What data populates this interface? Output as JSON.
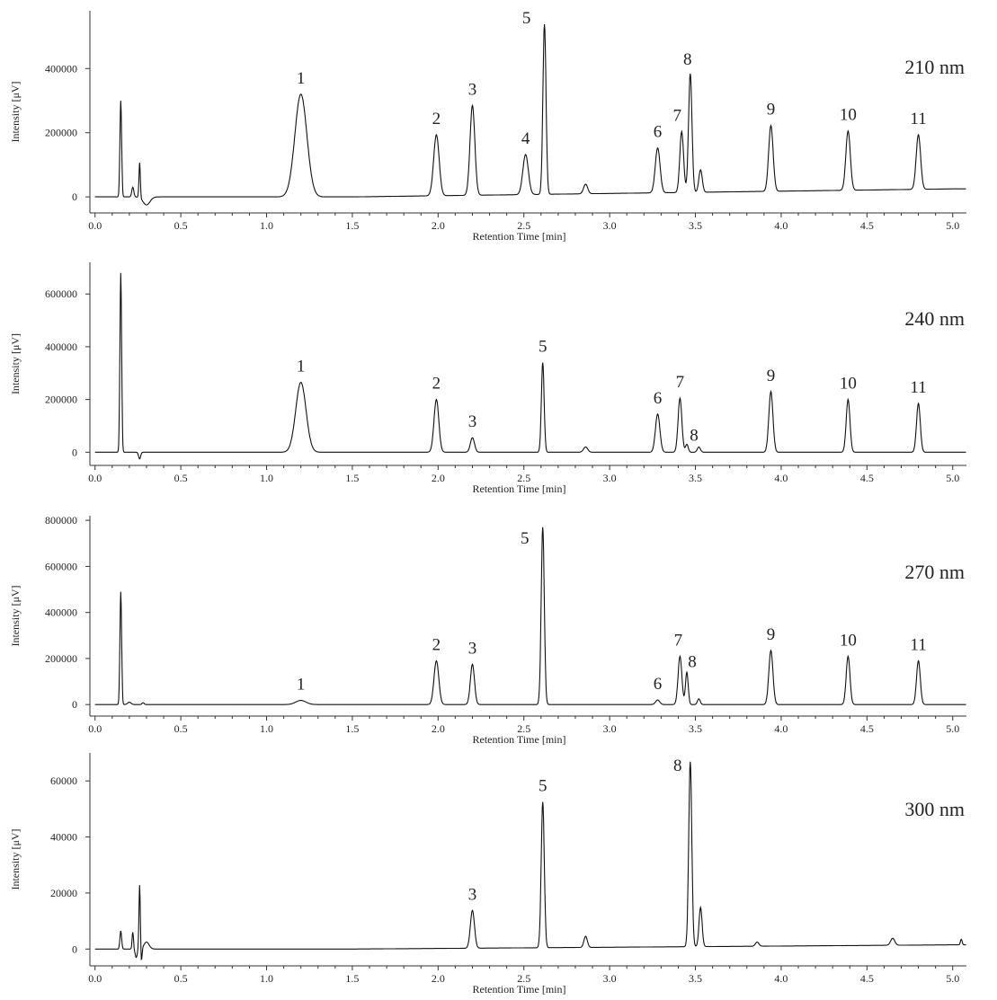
{
  "chart_data": [
    {
      "type": "line",
      "annotation": "210 nm",
      "xlabel": "Retention Time [min]",
      "ylabel": "Intensity [μV]",
      "xlim": [
        -0.03,
        5.08
      ],
      "ylim": [
        -50000,
        580000
      ],
      "yticks": [
        0,
        200000,
        400000
      ],
      "xticks": [
        "0.0",
        "0.5",
        "1.0",
        "1.5",
        "2.0",
        "2.5",
        "3.0",
        "3.5",
        "4.0",
        "4.5",
        "5.0"
      ],
      "baseline_drift": 25000,
      "peaks": [
        {
          "label": "",
          "x": 0.15,
          "h": 300000,
          "w": 0.005
        },
        {
          "label": "",
          "x": 0.22,
          "h": 30000,
          "w": 0.006
        },
        {
          "label": "",
          "x": 0.26,
          "h": 110000,
          "w": 0.004
        },
        {
          "label": "",
          "x": 0.3,
          "h": -25000,
          "w": 0.02
        },
        {
          "label": "1",
          "x": 1.2,
          "h": 320000,
          "w": 0.035
        },
        {
          "label": "2",
          "x": 1.99,
          "h": 190000,
          "w": 0.016
        },
        {
          "label": "3",
          "x": 2.2,
          "h": 280000,
          "w": 0.014
        },
        {
          "label": "4",
          "x": 2.51,
          "h": 125000,
          "w": 0.016
        },
        {
          "label": "5",
          "x": 2.62,
          "h": 530000,
          "w": 0.009
        },
        {
          "label": "",
          "x": 2.86,
          "h": 30000,
          "w": 0.012
        },
        {
          "label": "6",
          "x": 3.28,
          "h": 140000,
          "w": 0.014
        },
        {
          "label": "7",
          "x": 3.42,
          "h": 190000,
          "w": 0.011
        },
        {
          "label": "8",
          "x": 3.47,
          "h": 370000,
          "w": 0.01
        },
        {
          "label": "",
          "x": 3.53,
          "h": 70000,
          "w": 0.01
        },
        {
          "label": "9",
          "x": 3.94,
          "h": 205000,
          "w": 0.013
        },
        {
          "label": "10",
          "x": 4.39,
          "h": 185000,
          "w": 0.013
        },
        {
          "label": "11",
          "x": 4.8,
          "h": 170000,
          "w": 0.013
        }
      ]
    },
    {
      "type": "line",
      "annotation": "240 nm",
      "xlabel": "Retention Time [min]",
      "ylabel": "Intensity [μV]",
      "xlim": [
        -0.03,
        5.08
      ],
      "ylim": [
        -50000,
        720000
      ],
      "yticks": [
        0,
        200000,
        400000,
        600000
      ],
      "xticks": [
        "0.0",
        "0.5",
        "1.0",
        "1.5",
        "2.0",
        "2.5",
        "3.0",
        "3.5",
        "4.0",
        "4.5",
        "5.0"
      ],
      "baseline_drift": 0,
      "peaks": [
        {
          "label": "",
          "x": 0.15,
          "h": 680000,
          "w": 0.005
        },
        {
          "label": "",
          "x": 0.26,
          "h": -25000,
          "w": 0.006
        },
        {
          "label": "1",
          "x": 1.2,
          "h": 265000,
          "w": 0.03
        },
        {
          "label": "2",
          "x": 1.99,
          "h": 200000,
          "w": 0.014
        },
        {
          "label": "3",
          "x": 2.2,
          "h": 55000,
          "w": 0.012
        },
        {
          "label": "5",
          "x": 2.61,
          "h": 340000,
          "w": 0.008
        },
        {
          "label": "",
          "x": 2.86,
          "h": 20000,
          "w": 0.012
        },
        {
          "label": "6",
          "x": 3.28,
          "h": 145000,
          "w": 0.013
        },
        {
          "label": "7",
          "x": 3.41,
          "h": 205000,
          "w": 0.011
        },
        {
          "label": "8",
          "x": 3.45,
          "h": 30000,
          "w": 0.008
        },
        {
          "label": "",
          "x": 3.52,
          "h": 20000,
          "w": 0.009
        },
        {
          "label": "9",
          "x": 3.94,
          "h": 230000,
          "w": 0.012
        },
        {
          "label": "10",
          "x": 4.39,
          "h": 200000,
          "w": 0.011
        },
        {
          "label": "11",
          "x": 4.8,
          "h": 185000,
          "w": 0.011
        }
      ]
    },
    {
      "type": "line",
      "annotation": "270 nm",
      "xlabel": "Retention Time [min]",
      "ylabel": "Intensity [μV]",
      "xlim": [
        -0.03,
        5.08
      ],
      "ylim": [
        -50000,
        820000
      ],
      "yticks": [
        0,
        200000,
        400000,
        600000,
        800000
      ],
      "xticks": [
        "0.0",
        "0.5",
        "1.0",
        "1.5",
        "2.0",
        "2.5",
        "3.0",
        "3.5",
        "4.0",
        "4.5",
        "5.0"
      ],
      "baseline_drift": 0,
      "peaks": [
        {
          "label": "",
          "x": 0.15,
          "h": 490000,
          "w": 0.005
        },
        {
          "label": "",
          "x": 0.2,
          "h": 10000,
          "w": 0.01
        },
        {
          "label": "",
          "x": 0.28,
          "h": 8000,
          "w": 0.006
        },
        {
          "label": "1",
          "x": 1.2,
          "h": 18000,
          "w": 0.03
        },
        {
          "label": "2",
          "x": 1.99,
          "h": 190000,
          "w": 0.014
        },
        {
          "label": "3",
          "x": 2.2,
          "h": 175000,
          "w": 0.012
        },
        {
          "label": "5",
          "x": 2.61,
          "h": 770000,
          "w": 0.009
        },
        {
          "label": "6",
          "x": 3.28,
          "h": 20000,
          "w": 0.012
        },
        {
          "label": "7",
          "x": 3.41,
          "h": 210000,
          "w": 0.011
        },
        {
          "label": "8",
          "x": 3.45,
          "h": 140000,
          "w": 0.008
        },
        {
          "label": "",
          "x": 3.52,
          "h": 25000,
          "w": 0.008
        },
        {
          "label": "9",
          "x": 3.94,
          "h": 235000,
          "w": 0.012
        },
        {
          "label": "10",
          "x": 4.39,
          "h": 210000,
          "w": 0.011
        },
        {
          "label": "11",
          "x": 4.8,
          "h": 190000,
          "w": 0.011
        }
      ]
    },
    {
      "type": "line",
      "annotation": "300 nm",
      "xlabel": "Retention Time [min]",
      "ylabel": "Intensity [μV]",
      "xlim": [
        -0.03,
        5.08
      ],
      "ylim": [
        -6000,
        70000
      ],
      "yticks": [
        0,
        20000,
        40000,
        60000
      ],
      "xticks": [
        "0.0",
        "0.5",
        "1.0",
        "1.5",
        "2.0",
        "2.5",
        "3.0",
        "3.5",
        "4.0",
        "4.5",
        "5.0"
      ],
      "baseline_drift": 1500,
      "peaks": [
        {
          "label": "",
          "x": 0.15,
          "h": 6500,
          "w": 0.005
        },
        {
          "label": "",
          "x": 0.22,
          "h": 6000,
          "w": 0.004
        },
        {
          "label": "",
          "x": 0.24,
          "h": -3000,
          "w": 0.006
        },
        {
          "label": "",
          "x": 0.26,
          "h": 23000,
          "w": 0.004
        },
        {
          "label": "",
          "x": 0.27,
          "h": -5000,
          "w": 0.004
        },
        {
          "label": "",
          "x": 0.3,
          "h": 2500,
          "w": 0.015
        },
        {
          "label": "3",
          "x": 2.2,
          "h": 13500,
          "w": 0.012
        },
        {
          "label": "5",
          "x": 2.61,
          "h": 52000,
          "w": 0.009
        },
        {
          "label": "",
          "x": 2.86,
          "h": 4000,
          "w": 0.01
        },
        {
          "label": "8",
          "x": 3.47,
          "h": 66000,
          "w": 0.009
        },
        {
          "label": "",
          "x": 3.53,
          "h": 14000,
          "w": 0.009
        },
        {
          "label": "",
          "x": 3.86,
          "h": 1500,
          "w": 0.01
        },
        {
          "label": "",
          "x": 4.65,
          "h": 2500,
          "w": 0.012
        },
        {
          "label": "",
          "x": 5.05,
          "h": 2000,
          "w": 0.005
        }
      ]
    }
  ]
}
